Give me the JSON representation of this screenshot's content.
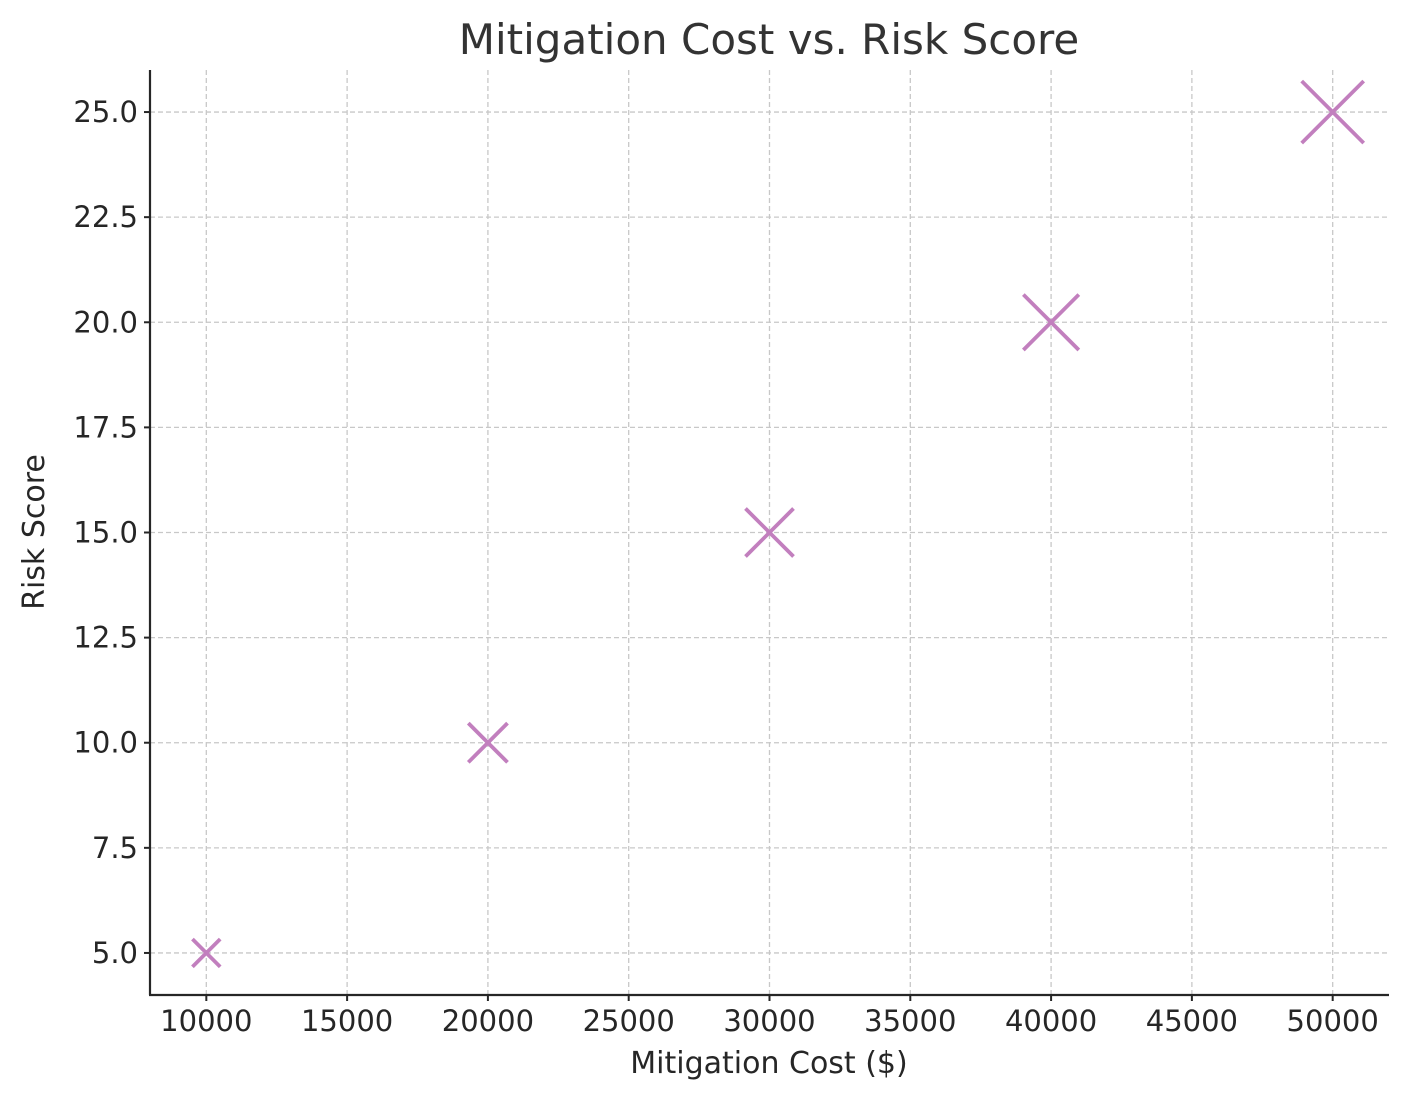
{
  "chart_data": {
    "type": "scatter",
    "title": "Mitigation Cost vs. Risk Score",
    "xlabel": "Mitigation Cost ($)",
    "ylabel": "Risk Score",
    "xlim": [
      8000,
      52000
    ],
    "ylim": [
      4.0,
      26.0
    ],
    "xticks": [
      10000,
      15000,
      20000,
      25000,
      30000,
      35000,
      40000,
      45000,
      50000
    ],
    "xtick_labels": [
      "10000",
      "15000",
      "20000",
      "25000",
      "30000",
      "35000",
      "40000",
      "45000",
      "50000"
    ],
    "yticks": [
      5.0,
      7.5,
      10.0,
      12.5,
      15.0,
      17.5,
      20.0,
      22.5,
      25.0
    ],
    "ytick_labels": [
      "5.0",
      "7.5",
      "10.0",
      "12.5",
      "15.0",
      "17.5",
      "20.0",
      "22.5",
      "25.0"
    ],
    "grid": true,
    "marker": "x",
    "marker_color": "#c27fbe",
    "marker_size_scales_with_value": true,
    "points": [
      {
        "x": 10000,
        "y": 5.0
      },
      {
        "x": 20000,
        "y": 10.0
      },
      {
        "x": 30000,
        "y": 15.0
      },
      {
        "x": 40000,
        "y": 20.0
      },
      {
        "x": 50000,
        "y": 25.0
      }
    ]
  }
}
